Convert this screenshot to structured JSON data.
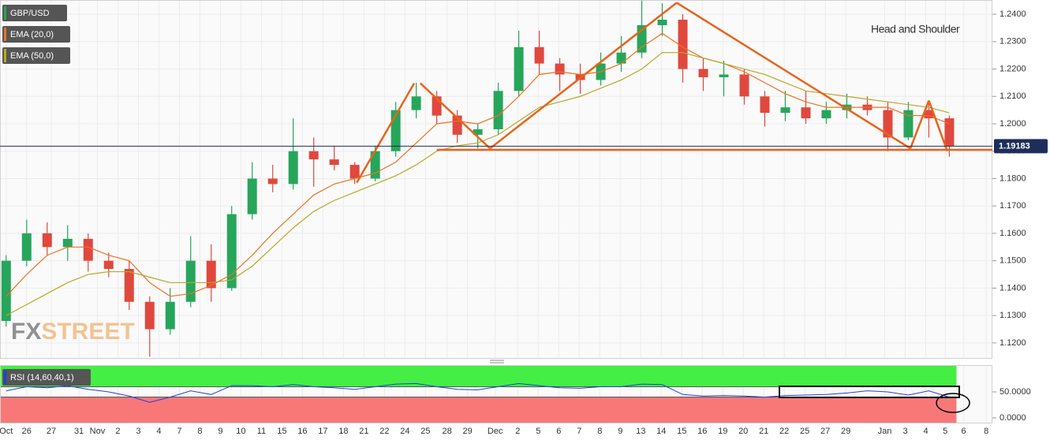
{
  "chart_data": [
    {
      "type": "candlestick",
      "symbol": "GBP/USD",
      "up_color": "#26a65b",
      "down_color": "#e0483e",
      "x": [
        0.3,
        1.3,
        2.3,
        3.3,
        4.3,
        5.3,
        6.3,
        7.3,
        8.3,
        9.3,
        10.3,
        11.3,
        12.3,
        13.3,
        14.3,
        15.3,
        16.3,
        17.3,
        18.3,
        19.3,
        20.3,
        21.3,
        22.3,
        23.3,
        24.3,
        25.3,
        26.3,
        27.3,
        28.3,
        29.3,
        30.3,
        31.3,
        32.3,
        33.3,
        34.3,
        35.3,
        36.3,
        37.3,
        38.3,
        39.3,
        40.3,
        41.3,
        42.3,
        43.3,
        44.3,
        45.3,
        46.3
      ],
      "open": [
        1.128,
        1.15,
        1.16,
        1.155,
        1.158,
        1.15,
        1.147,
        1.135,
        1.125,
        1.135,
        1.15,
        1.14,
        1.167,
        1.18,
        1.178,
        1.19,
        1.187,
        1.185,
        1.18,
        1.19,
        1.205,
        1.21,
        1.203,
        1.196,
        1.198,
        1.212,
        1.228,
        1.222,
        1.218,
        1.216,
        1.222,
        1.226,
        1.236,
        1.238,
        1.22,
        1.217,
        1.218,
        1.21,
        1.204,
        1.206,
        1.202,
        1.205,
        1.207,
        1.205,
        1.195,
        1.205,
        1.202
      ],
      "high": [
        1.152,
        1.165,
        1.164,
        1.163,
        1.16,
        1.153,
        1.15,
        1.137,
        1.14,
        1.159,
        1.156,
        1.17,
        1.186,
        1.185,
        1.202,
        1.195,
        1.192,
        1.186,
        1.192,
        1.208,
        1.215,
        1.212,
        1.205,
        1.2,
        1.215,
        1.234,
        1.234,
        1.224,
        1.222,
        1.226,
        1.232,
        1.245,
        1.244,
        1.24,
        1.224,
        1.223,
        1.22,
        1.212,
        1.212,
        1.212,
        1.208,
        1.211,
        1.21,
        1.208,
        1.208,
        1.208,
        1.203
      ],
      "low": [
        1.126,
        1.148,
        1.152,
        1.15,
        1.146,
        1.144,
        1.132,
        1.115,
        1.123,
        1.133,
        1.135,
        1.139,
        1.165,
        1.175,
        1.176,
        1.177,
        1.183,
        1.178,
        1.179,
        1.188,
        1.202,
        1.2,
        1.193,
        1.191,
        1.196,
        1.21,
        1.218,
        1.212,
        1.211,
        1.214,
        1.219,
        1.224,
        1.232,
        1.215,
        1.212,
        1.21,
        1.207,
        1.199,
        1.201,
        1.2,
        1.2,
        1.202,
        1.203,
        1.19,
        1.194,
        1.195,
        1.188
      ],
      "close": [
        1.15,
        1.16,
        1.155,
        1.158,
        1.15,
        1.147,
        1.135,
        1.125,
        1.135,
        1.15,
        1.14,
        1.167,
        1.18,
        1.178,
        1.19,
        1.187,
        1.185,
        1.18,
        1.19,
        1.205,
        1.21,
        1.203,
        1.196,
        1.198,
        1.212,
        1.228,
        1.222,
        1.218,
        1.216,
        1.222,
        1.226,
        1.236,
        1.238,
        1.22,
        1.217,
        1.218,
        1.21,
        1.204,
        1.206,
        1.202,
        1.205,
        1.207,
        1.205,
        1.195,
        1.205,
        1.202,
        1.1918
      ],
      "series": [
        {
          "name": "EMA (20,0)",
          "color": "#f07020",
          "values": [
            1.137,
            1.145,
            1.152,
            1.155,
            1.155,
            1.152,
            1.15,
            1.142,
            1.137,
            1.138,
            1.141,
            1.145,
            1.152,
            1.16,
            1.167,
            1.174,
            1.178,
            1.18,
            1.182,
            1.186,
            1.193,
            1.2,
            1.201,
            1.2,
            1.203,
            1.21,
            1.218,
            1.219,
            1.218,
            1.219,
            1.222,
            1.228,
            1.233,
            1.228,
            1.224,
            1.222,
            1.219,
            1.215,
            1.211,
            1.208,
            1.206,
            1.206,
            1.206,
            1.206,
            1.203,
            1.203,
            1.2
          ]
        },
        {
          "name": "EMA (50,0)",
          "color": "#b8a828",
          "values": [
            1.13,
            1.134,
            1.138,
            1.142,
            1.145,
            1.146,
            1.146,
            1.144,
            1.142,
            1.142,
            1.142,
            1.143,
            1.148,
            1.155,
            1.162,
            1.168,
            1.172,
            1.175,
            1.178,
            1.181,
            1.185,
            1.19,
            1.192,
            1.193,
            1.196,
            1.201,
            1.206,
            1.208,
            1.21,
            1.213,
            1.216,
            1.22,
            1.226,
            1.226,
            1.224,
            1.222,
            1.22,
            1.218,
            1.215,
            1.212,
            1.211,
            1.21,
            1.209,
            1.208,
            1.207,
            1.206,
            1.204
          ]
        }
      ],
      "last_price": 1.19183,
      "drawings": [
        {
          "x": [
            17.4,
            20.2
          ],
          "y": [
            1.1785,
            1.2148
          ]
        },
        {
          "x": [
            20.5,
            23.9
          ],
          "y": [
            1.2148,
            1.191
          ]
        },
        {
          "x": [
            23.9,
            33.0
          ],
          "y": [
            1.191,
            1.2442
          ]
        },
        {
          "x": [
            33.0,
            44.4
          ],
          "y": [
            1.2442,
            1.191
          ]
        },
        {
          "x": [
            44.4,
            45.3
          ],
          "y": [
            1.191,
            1.2085
          ]
        },
        {
          "x": [
            45.3,
            46.2
          ],
          "y": [
            1.2085,
            1.19
          ]
        },
        {
          "x": [
            21.3,
            48.4
          ],
          "y": [
            1.1905,
            1.1905
          ]
        }
      ],
      "drawing_color": "#e8641b",
      "annotation": "Head and Shoulder",
      "watermark": [
        "FX",
        "STREET"
      ],
      "xlim": [
        0,
        48.4
      ],
      "xticks": [
        {
          "value": 0.3,
          "label": "Oct"
        },
        {
          "value": 1.3,
          "label": "26"
        },
        {
          "value": 2.5,
          "label": "27"
        },
        {
          "value": 3.85,
          "label": "31"
        },
        {
          "value": 4.75,
          "label": "Nov"
        },
        {
          "value": 5.75,
          "label": "2"
        },
        {
          "value": 6.75,
          "label": "3"
        },
        {
          "value": 7.75,
          "label": "4"
        },
        {
          "value": 8.75,
          "label": "7"
        },
        {
          "value": 9.75,
          "label": "8"
        },
        {
          "value": 10.75,
          "label": "9"
        },
        {
          "value": 11.75,
          "label": "10"
        },
        {
          "value": 12.75,
          "label": "11"
        },
        {
          "value": 13.75,
          "label": "15"
        },
        {
          "value": 14.75,
          "label": "16"
        },
        {
          "value": 15.75,
          "label": "17"
        },
        {
          "value": 16.75,
          "label": "18"
        },
        {
          "value": 17.75,
          "label": "21"
        },
        {
          "value": 18.75,
          "label": "22"
        },
        {
          "value": 19.75,
          "label": "24"
        },
        {
          "value": 20.75,
          "label": "25"
        },
        {
          "value": 21.8,
          "label": "28"
        },
        {
          "value": 22.8,
          "label": "29"
        },
        {
          "value": 24.15,
          "label": "Dec"
        },
        {
          "value": 25.25,
          "label": "2"
        },
        {
          "value": 26.25,
          "label": "5"
        },
        {
          "value": 27.25,
          "label": "6"
        },
        {
          "value": 28.25,
          "label": "7"
        },
        {
          "value": 29.25,
          "label": "8"
        },
        {
          "value": 30.25,
          "label": "9"
        },
        {
          "value": 31.25,
          "label": "13"
        },
        {
          "value": 32.25,
          "label": "14"
        },
        {
          "value": 33.25,
          "label": "15"
        },
        {
          "value": 34.25,
          "label": "16"
        },
        {
          "value": 35.25,
          "label": "19"
        },
        {
          "value": 36.25,
          "label": "20"
        },
        {
          "value": 37.25,
          "label": "21"
        },
        {
          "value": 38.25,
          "label": "22"
        },
        {
          "value": 39.25,
          "label": "25"
        },
        {
          "value": 40.25,
          "label": "27"
        },
        {
          "value": 41.25,
          "label": "29"
        },
        {
          "value": 43.15,
          "label": "Jan"
        },
        {
          "value": 44.15,
          "label": "3"
        },
        {
          "value": 45.15,
          "label": "4"
        },
        {
          "value": 46.1,
          "label": "5"
        },
        {
          "value": 47.0,
          "label": "6"
        },
        {
          "value": 48.1,
          "label": "8"
        }
      ],
      "ylim": [
        1.1142,
        1.2452
      ],
      "yticks": [
        {
          "value": 1.12,
          "label": "1.1200"
        },
        {
          "value": 1.13,
          "label": "1.1300"
        },
        {
          "value": 1.14,
          "label": "1.1400"
        },
        {
          "value": 1.15,
          "label": "1.1500"
        },
        {
          "value": 1.16,
          "label": "1.1600"
        },
        {
          "value": 1.17,
          "label": "1.1700"
        },
        {
          "value": 1.18,
          "label": "1.1800"
        },
        {
          "value": 1.19,
          "label": "1.1900"
        },
        {
          "value": 1.2,
          "label": "1.2000"
        },
        {
          "value": 1.21,
          "label": "1.2100"
        },
        {
          "value": 1.22,
          "label": "1.2200"
        },
        {
          "value": 1.23,
          "label": "1.2300"
        },
        {
          "value": 1.24,
          "label": "1.2400"
        }
      ],
      "grid": true
    },
    {
      "type": "line",
      "name": "RSI (14,60,40,1)",
      "color": "#2040e0",
      "x": [
        0.3,
        1.3,
        2.3,
        3.3,
        4.3,
        5.3,
        6.3,
        7.3,
        8.3,
        9.3,
        10.3,
        11.3,
        12.3,
        13.3,
        14.3,
        15.3,
        16.3,
        17.3,
        18.3,
        19.3,
        20.3,
        21.3,
        22.3,
        23.3,
        24.3,
        25.3,
        26.3,
        27.3,
        28.3,
        29.3,
        30.3,
        31.3,
        32.3,
        33.3,
        34.3,
        35.3,
        36.3,
        37.3,
        38.3,
        39.3,
        40.3,
        41.3,
        42.3,
        43.3,
        44.3,
        45.3,
        46.3
      ],
      "values": [
        52,
        60,
        58,
        62,
        55,
        50,
        42,
        30,
        40,
        52,
        45,
        62,
        62,
        60,
        64,
        60,
        58,
        55,
        60,
        65,
        66,
        60,
        55,
        54,
        60,
        66,
        62,
        58,
        57,
        60,
        60,
        65,
        64,
        45,
        42,
        43,
        42,
        40,
        43,
        44,
        45,
        48,
        52,
        50,
        44,
        52,
        40
      ],
      "bands": [
        60,
        40
      ],
      "band_colors": [
        "#44ee44",
        "#f87878"
      ],
      "ylim": [
        -10.6,
        101.5
      ],
      "yticks": [
        {
          "value": 50,
          "label": "50.0000"
        },
        {
          "value": 0,
          "label": "0.0000"
        }
      ]
    }
  ]
}
